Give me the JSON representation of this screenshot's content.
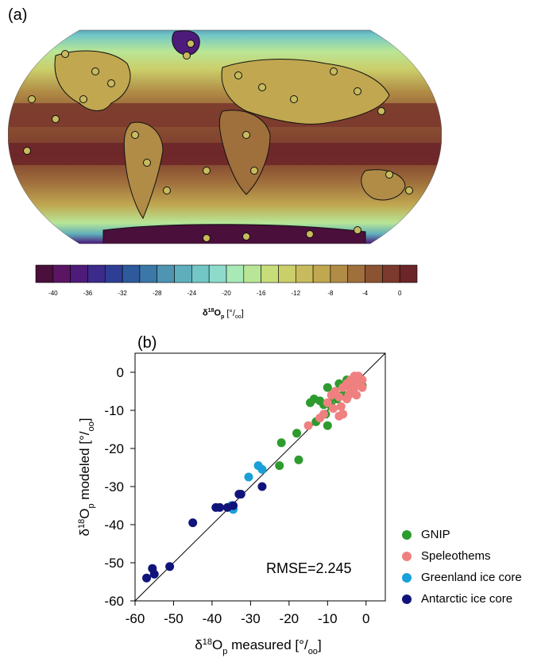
{
  "panel_a": {
    "label": "(a)",
    "colorbar": {
      "colors": [
        "#4a0f3b",
        "#5b1563",
        "#4d1b7a",
        "#3c2b8a",
        "#2f3e95",
        "#2e5a9c",
        "#3c78a7",
        "#4f94b1",
        "#5faebc",
        "#72c7c6",
        "#8fdbcb",
        "#a8e9b6",
        "#b8e696",
        "#c7dd7a",
        "#cbcf6a",
        "#c7bb5d",
        "#c0a750",
        "#b18c46",
        "#9f6f3c",
        "#8c5333",
        "#7b3a2d",
        "#6c2528"
      ],
      "tick_labels": [
        "-40",
        "-36",
        "-32",
        "-28",
        "-24",
        "-20",
        "-16",
        "-12",
        "-8",
        "-4",
        "0"
      ],
      "label": "δ18Op [o/oo]"
    },
    "map": {
      "type": "filled-contour world map with measured-site circles",
      "ocean_color": "#7a2f2c",
      "polar_color": "#5b1563"
    }
  },
  "panel_b": {
    "label": "(b)",
    "xlabel": "δ18Op measured [o/oo]",
    "ylabel": "δ18Op modeled [o/oo]",
    "annotation": "RMSE=2.245",
    "legend": [
      {
        "name": "GNIP",
        "color": "#2e9b2e"
      },
      {
        "name": "Speleothems",
        "color": "#f08080"
      },
      {
        "name": "Greenland ice core",
        "color": "#1aa0d8"
      },
      {
        "name": "Antarctic ice core",
        "color": "#10147a"
      }
    ]
  },
  "chart_data": {
    "type": "scatter",
    "xlabel": "δ18Op measured [°/oo]",
    "ylabel": "δ18Op modeled [°/oo]",
    "xlim": [
      -60,
      5
    ],
    "ylim": [
      -60,
      5
    ],
    "xticks": [
      -60,
      -50,
      -40,
      -30,
      -20,
      -10,
      0
    ],
    "yticks": [
      -60,
      -50,
      -40,
      -30,
      -20,
      -10,
      0
    ],
    "reference_line": "1:1",
    "annotation": "RMSE=2.245",
    "legend_position": "right",
    "series": [
      {
        "name": "GNIP",
        "color": "#2e9b2e",
        "points": [
          [
            -22,
            -18.5
          ],
          [
            -22.5,
            -24.5
          ],
          [
            -18,
            -16
          ],
          [
            -17.5,
            -23
          ],
          [
            -13,
            -13
          ],
          [
            -14.5,
            -8
          ],
          [
            -12,
            -7.5
          ],
          [
            -11,
            -8.5
          ],
          [
            -10,
            -14
          ],
          [
            -10.5,
            -11
          ],
          [
            -9,
            -9
          ],
          [
            -8.5,
            -6
          ],
          [
            -10,
            -4
          ],
          [
            -8,
            -5
          ],
          [
            -7,
            -3
          ],
          [
            -6,
            -3.5
          ],
          [
            -5,
            -2
          ],
          [
            -4,
            -4
          ],
          [
            -3,
            -2.5
          ],
          [
            -2,
            -2
          ],
          [
            -1,
            -3.5
          ],
          [
            -6,
            -6
          ],
          [
            -7.5,
            -7
          ],
          [
            -13.5,
            -7
          ],
          [
            -9.5,
            -8
          ]
        ]
      },
      {
        "name": "Speleothems",
        "color": "#f08080",
        "points": [
          [
            -15,
            -14
          ],
          [
            -12,
            -12
          ],
          [
            -11,
            -11
          ],
          [
            -10,
            -8
          ],
          [
            -9,
            -6
          ],
          [
            -8,
            -5
          ],
          [
            -7,
            -6.5
          ],
          [
            -7,
            -11.5
          ],
          [
            -6,
            -11
          ],
          [
            -6,
            -4
          ],
          [
            -5,
            -3
          ],
          [
            -5,
            -7
          ],
          [
            -4,
            -5
          ],
          [
            -4,
            -2
          ],
          [
            -3,
            -1
          ],
          [
            -3,
            -4
          ],
          [
            -2,
            -3
          ],
          [
            -2,
            -1
          ],
          [
            -1,
            -2
          ],
          [
            -1,
            -4
          ],
          [
            -6.5,
            -9
          ],
          [
            -8.5,
            -9.5
          ],
          [
            -4.5,
            -6
          ],
          [
            -3.5,
            -5
          ],
          [
            -2.5,
            -6
          ]
        ]
      },
      {
        "name": "Greenland ice core",
        "color": "#1aa0d8",
        "points": [
          [
            -35,
            -35
          ],
          [
            -34.5,
            -36
          ],
          [
            -30.5,
            -27.5
          ],
          [
            -28,
            -24.5
          ],
          [
            -27,
            -25.5
          ]
        ]
      },
      {
        "name": "Antarctic ice core",
        "color": "#10147a",
        "points": [
          [
            -57,
            -54
          ],
          [
            -55,
            -53
          ],
          [
            -55.5,
            -51.5
          ],
          [
            -51,
            -51
          ],
          [
            -45,
            -39.5
          ],
          [
            -39,
            -35.5
          ],
          [
            -38,
            -35.5
          ],
          [
            -36,
            -35.5
          ],
          [
            -33,
            -32
          ],
          [
            -32.5,
            -32
          ],
          [
            -27,
            -30
          ],
          [
            -34.5,
            -35
          ]
        ]
      }
    ]
  }
}
